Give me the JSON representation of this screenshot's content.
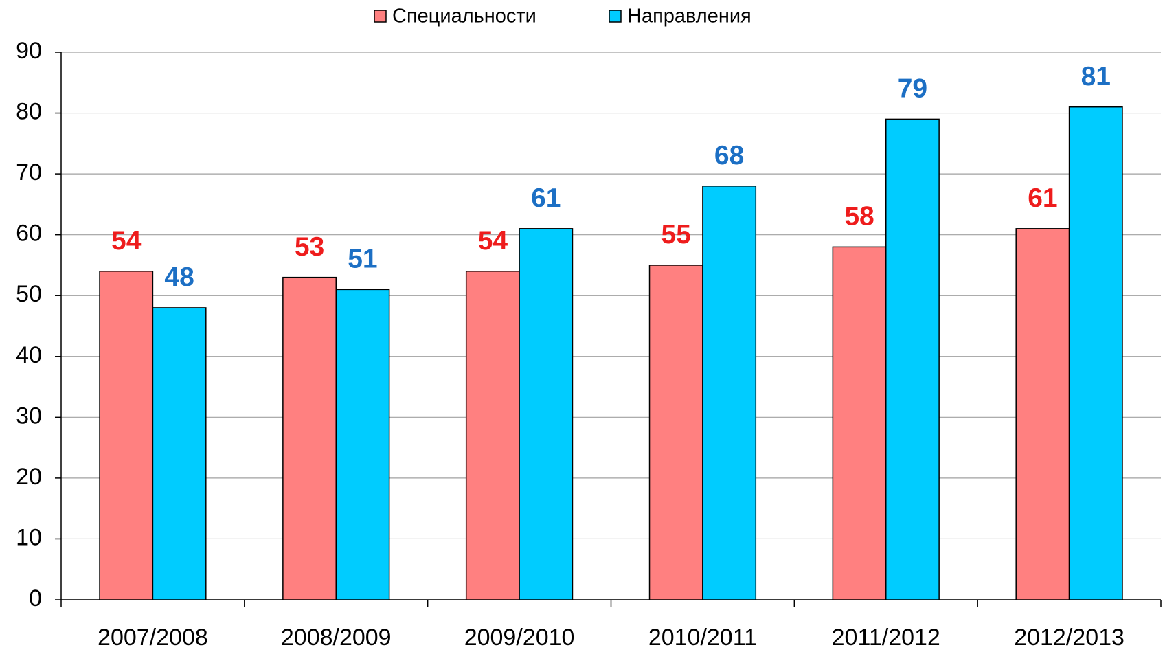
{
  "chart_data": {
    "type": "bar",
    "categories": [
      "2007/2008",
      "2008/2009",
      "2009/2010",
      "2010/2011",
      "2011/2012",
      "2012/2013"
    ],
    "series": [
      {
        "name": "Специальности",
        "color": "#ff8080",
        "label_color": "#ee1c1c",
        "values": [
          54,
          53,
          54,
          55,
          58,
          61
        ]
      },
      {
        "name": "Направления",
        "color": "#00ccff",
        "label_color": "#1c6fc4",
        "values": [
          48,
          51,
          61,
          68,
          79,
          81
        ]
      }
    ],
    "ylim": [
      0,
      90
    ],
    "yticks": [
      0,
      10,
      20,
      30,
      40,
      50,
      60,
      70,
      80,
      90
    ],
    "grid": true,
    "legend": "top"
  }
}
